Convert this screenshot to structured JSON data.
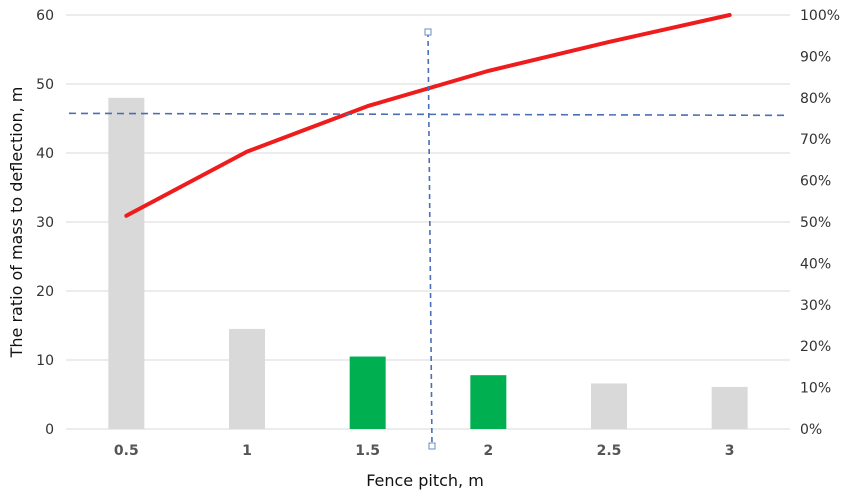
{
  "chart_data": {
    "type": "bar",
    "xlabel": "Fence pitch, m",
    "ylabel": "The ratio of mass to deflection, m",
    "categories": [
      "0.5",
      "1",
      "1.5",
      "2",
      "2.5",
      "3"
    ],
    "ylim": [
      0,
      60
    ],
    "yticks": [
      "0",
      "10",
      "20",
      "30",
      "40",
      "50",
      "60"
    ],
    "y2lim": [
      0,
      100
    ],
    "y2ticks": [
      "0%",
      "10%",
      "20%",
      "30%",
      "40%",
      "50%",
      "60%",
      "70%",
      "80%",
      "90%",
      "100%"
    ],
    "bars": {
      "values": [
        48,
        14.5,
        10.5,
        7.8,
        6.6,
        6.1
      ],
      "colors": [
        "#d9d9d9",
        "#d9d9d9",
        "#00b050",
        "#00b050",
        "#d9d9d9",
        "#d9d9d9"
      ]
    },
    "line": {
      "axis": "right",
      "color": "#ee1c1c",
      "values_percent": [
        51.5,
        67,
        78,
        86.5,
        93.5,
        100
      ]
    },
    "reference_lines": {
      "color": "#4a6fb4",
      "horizontal_percent": 76,
      "vertical_x": 1.75
    },
    "grid": true
  }
}
